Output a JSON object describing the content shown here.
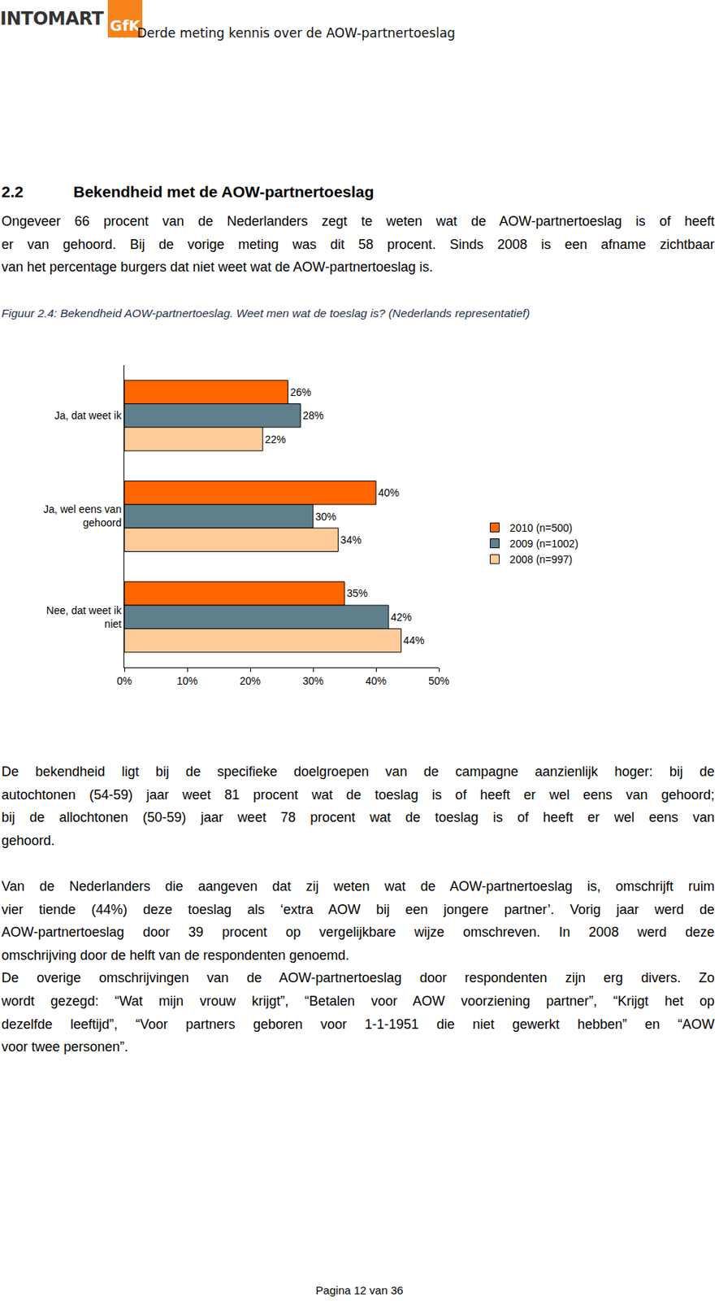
{
  "header": {
    "logo": [
      "INTOMART",
      "GfK"
    ],
    "title": "Derde meting kennis over de AOW-partnertoeslag"
  },
  "section": {
    "number": "2.2",
    "title": "Bekendheid met de AOW-partnertoeslag"
  },
  "intro": [
    "Ongeveer 66 procent van de Nederlanders zegt te weten wat de AOW-partnertoeslag is of heeft",
    "er van gehoord. Bij de vorige meting was dit 58 procent. Sinds 2008 is een afname zichtbaar",
    "van het percentage burgers dat niet weet wat de AOW-partnertoeslag is."
  ],
  "figure_caption": "Figuur 2.4: Bekendheid AOW-partnertoeslag. Weet men wat de toeslag is? (Nederlands representatief)",
  "chart_data": {
    "type": "bar",
    "orientation": "horizontal",
    "categories": [
      "Ja, dat weet ik",
      "Ja, wel eens van gehoord",
      "Nee, dat weet ik niet"
    ],
    "series": [
      {
        "name": "2010 (n=500)",
        "color": "#ff6600",
        "values": [
          26,
          40,
          35
        ],
        "value_labels": [
          "26%",
          "40%",
          "35%"
        ]
      },
      {
        "name": "2009 (n=1002)",
        "color": "#5f7f8c",
        "values": [
          28,
          30,
          42
        ],
        "value_labels": [
          "28%",
          "30%",
          "42%"
        ]
      },
      {
        "name": "2008 (n=997)",
        "color": "#ffcc99",
        "values": [
          22,
          34,
          44
        ],
        "value_labels": [
          "22%",
          "34%",
          "44%"
        ]
      }
    ],
    "xlim": [
      0,
      50
    ],
    "xticks": [
      {
        "value": 0,
        "label": "0%"
      },
      {
        "value": 10,
        "label": "10%"
      },
      {
        "value": 20,
        "label": "20%"
      },
      {
        "value": 30,
        "label": "30%"
      },
      {
        "value": 40,
        "label": "40%"
      },
      {
        "value": 50,
        "label": "50%"
      }
    ],
    "data_labels": true,
    "grid": false,
    "legend": "right"
  },
  "paragraphs": [
    [
      "De bekendheid ligt bij de specifieke doelgroepen van de campagne aanzienlijk hoger: bij de",
      "autochtonen (54-59) jaar weet 81 procent wat de toeslag is of heeft er wel eens van gehoord;",
      "bij de allochtonen (50-59) jaar weet  78 procent wat de toeslag is of heeft er wel eens van",
      "gehoord."
    ],
    [
      "Van de Nederlanders die aangeven dat zij weten wat de AOW-partnertoeslag is, omschrijft ruim",
      "vier tiende (44%) deze toeslag als ‘extra AOW bij een jongere partner’. Vorig jaar werd de",
      "AOW-partnertoeslag door 39 procent op vergelijkbare wijze omschreven. In 2008 werd deze",
      "omschrijving door de helft van de respondenten genoemd."
    ],
    [
      "De overige omschrijvingen van de AOW-partnertoeslag door respondenten zijn erg divers. Zo",
      "wordt gezegd: “Wat mijn vrouw krijgt”, “Betalen voor AOW voorziening partner”, “Krijgt het op",
      "dezelfde leeftijd”, “Voor partners geboren voor 1-1-1951 die niet gewerkt hebben” en “AOW",
      "voor twee personen”."
    ]
  ],
  "footer": "Pagina 12 van 36"
}
